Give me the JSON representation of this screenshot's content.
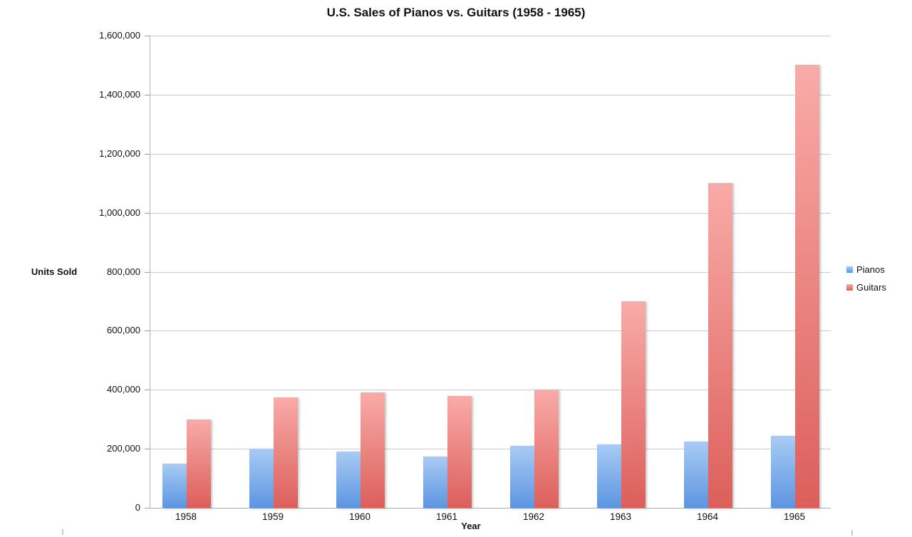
{
  "chart_data": {
    "type": "bar",
    "title": "U.S. Sales of Pianos vs. Guitars (1958 - 1965)",
    "xlabel": "Year",
    "ylabel": "Units Sold",
    "categories": [
      "1958",
      "1959",
      "1960",
      "1961",
      "1962",
      "1963",
      "1964",
      "1965"
    ],
    "series": [
      {
        "name": "Pianos",
        "values": [
          150000,
          200000,
          190000,
          175000,
          210000,
          215000,
          225000,
          245000
        ],
        "color_top": "#a8cbf4",
        "color_bottom": "#5d95e1"
      },
      {
        "name": "Guitars",
        "values": [
          300000,
          375000,
          390000,
          380000,
          400000,
          700000,
          1100000,
          1500000
        ],
        "color_top": "#f9aba8",
        "color_bottom": "#dc5f5b"
      }
    ],
    "ylim": [
      0,
      1600000
    ],
    "ytick_step": 200000,
    "ytick_labels": [
      "0",
      "200,000",
      "400,000",
      "600,000",
      "800,000",
      "1,000,000",
      "1,200,000",
      "1,400,000",
      "1,600,000"
    ],
    "grid": true,
    "legend_position": "right",
    "colors": {
      "gridline": "#c9c9c9",
      "axis": "#ababab",
      "text": "#111111"
    }
  }
}
